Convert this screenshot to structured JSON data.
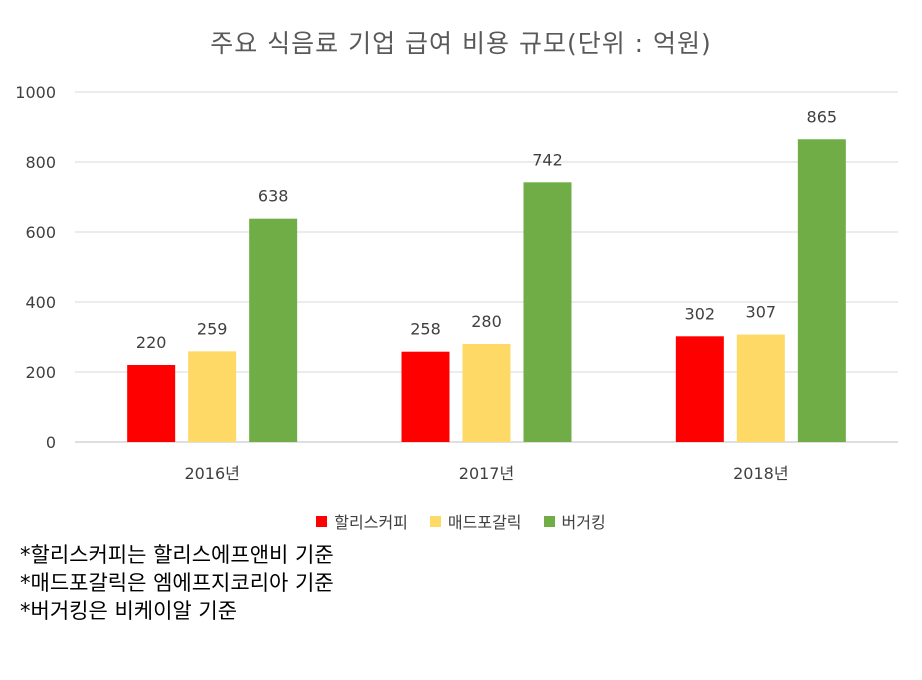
{
  "chart_data": {
    "type": "bar",
    "title": "주요 식음료 기업 급여 비용 규모(단위 : 억원)",
    "categories": [
      "2016년",
      "2017년",
      "2018년"
    ],
    "series": [
      {
        "name": "할리스커피",
        "color": "#ff0000",
        "values": [
          220,
          258,
          302
        ]
      },
      {
        "name": "매드포갈릭",
        "color": "#ffd966",
        "values": [
          259,
          280,
          307
        ]
      },
      {
        "name": "버거킹",
        "color": "#70ad47",
        "values": [
          638,
          742,
          865
        ]
      }
    ],
    "ylim": [
      0,
      1000
    ],
    "yticks": [
      0,
      200,
      400,
      600,
      800,
      1000
    ],
    "grid": true,
    "legend": "bottom"
  },
  "notes": [
    "*할리스커피는 할리스에프앤비 기준",
    "*매드포갈릭은 엠에프지코리아 기준",
    "*버거킹은 비케이알 기준"
  ]
}
